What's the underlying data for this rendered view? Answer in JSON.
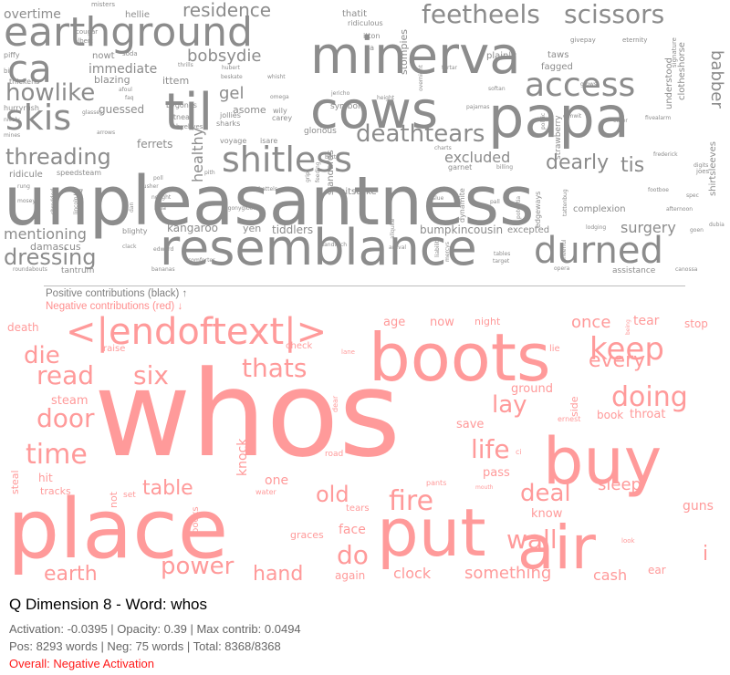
{
  "title": "Q Dimension 8 - Word: whos",
  "stats": {
    "line1": "Activation: -0.0395 | Opacity: 0.39 | Max contrib: 0.0494",
    "line2": "Pos: 8293 words | Neg: 75 words | Total: 8368/8368",
    "line3": "Overall: Negative Activation"
  },
  "legend": {
    "positive": "Positive contributions (black) ↑",
    "negative": "Negative contributions (red) ↓"
  },
  "colors": {
    "positive_words": "#8c8c8c",
    "negative_words": "#ff9a9a",
    "overall_text": "#ff1a1a"
  },
  "positive_words": [
    {
      "t": "unpleasantness",
      "s": 74
    },
    {
      "t": "papa",
      "s": 62
    },
    {
      "t": "minerva",
      "s": 56
    },
    {
      "t": "til",
      "s": 56
    },
    {
      "t": "cows",
      "s": 56
    },
    {
      "t": "resemblance",
      "s": 54
    },
    {
      "t": "earthground",
      "s": 44
    },
    {
      "t": "ca",
      "s": 42
    },
    {
      "t": "durned",
      "s": 40
    },
    {
      "t": "skis",
      "s": 38
    },
    {
      "t": "shitless",
      "s": 38
    },
    {
      "t": "access",
      "s": 36
    },
    {
      "t": "feetheels",
      "s": 28
    },
    {
      "t": "scissors",
      "s": 28
    },
    {
      "t": "howlike",
      "s": 26
    },
    {
      "t": "deathtears",
      "s": 26
    },
    {
      "t": "threading",
      "s": 24
    },
    {
      "t": "dressing",
      "s": 24
    },
    {
      "t": "dearly",
      "s": 22
    },
    {
      "t": "tis",
      "s": 22
    },
    {
      "t": "residence",
      "s": 20
    },
    {
      "t": "bobsydie",
      "s": 18
    },
    {
      "t": "babber",
      "s": 18
    },
    {
      "t": "gel",
      "s": 18
    },
    {
      "t": "mentioning",
      "s": 16
    },
    {
      "t": "excluded",
      "s": 16
    },
    {
      "t": "surgery",
      "s": 16
    },
    {
      "t": "healthy",
      "s": 16
    },
    {
      "t": "overtime",
      "s": 14
    },
    {
      "t": "immediate",
      "s": 14
    },
    {
      "t": "ferrets",
      "s": 12
    },
    {
      "t": "bumpkincousin",
      "s": 12
    },
    {
      "t": "kangaroo",
      "s": 12
    },
    {
      "t": "tiddlers",
      "s": 12
    },
    {
      "t": "guessed",
      "s": 12
    },
    {
      "t": "ittem",
      "s": 11
    },
    {
      "t": "blazing",
      "s": 11
    },
    {
      "t": "asome",
      "s": 11
    },
    {
      "t": "damascus",
      "s": 11
    },
    {
      "t": "yen",
      "s": 11
    },
    {
      "t": "stompies",
      "s": 11
    },
    {
      "t": "standards",
      "s": 10
    },
    {
      "t": "hitstrike",
      "s": 10
    },
    {
      "t": "complexion",
      "s": 10
    },
    {
      "t": "shirtsleeves",
      "s": 10
    },
    {
      "t": "clotheshorse",
      "s": 10
    },
    {
      "t": "understood",
      "s": 10
    },
    {
      "t": "nowt",
      "s": 10
    },
    {
      "t": "ridicule",
      "s": 10
    },
    {
      "t": "assistance",
      "s": 9
    },
    {
      "t": "tantrum",
      "s": 9
    },
    {
      "t": "excepted",
      "s": 10
    },
    {
      "t": "fagged",
      "s": 10
    },
    {
      "t": "taws",
      "s": 10
    },
    {
      "t": "plainly",
      "s": 10
    },
    {
      "t": "thatit",
      "s": 10
    },
    {
      "t": "hellie",
      "s": 10
    },
    {
      "t": "symbol",
      "s": 9
    },
    {
      "t": "glorious",
      "s": 9
    },
    {
      "t": "strawberry",
      "s": 9
    },
    {
      "t": "jollies",
      "s": 8
    },
    {
      "t": "sharks",
      "s": 8
    },
    {
      "t": "atnear",
      "s": 8
    },
    {
      "t": "bygones",
      "s": 8
    },
    {
      "t": "byebyes",
      "s": 7
    },
    {
      "t": "carey",
      "s": 8
    },
    {
      "t": "wily",
      "s": 8
    },
    {
      "t": "dynamite",
      "s": 8
    },
    {
      "t": "edgeways",
      "s": 8
    },
    {
      "t": "garnet",
      "s": 8
    },
    {
      "t": "speedsteam",
      "s": 8
    },
    {
      "t": "blighty",
      "s": 8
    },
    {
      "t": "voyage",
      "s": 8
    },
    {
      "t": "isare",
      "s": 8
    },
    {
      "t": "hurryrush",
      "s": 8
    },
    {
      "t": "thickens",
      "s": 8
    },
    {
      "t": "piffy",
      "s": 8
    },
    {
      "t": "ridiculous",
      "s": 8
    },
    {
      "t": "misters",
      "s": 7
    },
    {
      "t": "cougar",
      "s": 7
    },
    {
      "t": "albert",
      "s": 7
    },
    {
      "t": "biv",
      "s": 7
    },
    {
      "t": "soda",
      "s": 7
    },
    {
      "t": "eternity",
      "s": 7
    },
    {
      "t": "givepay",
      "s": 7
    },
    {
      "t": "signature",
      "s": 7
    },
    {
      "t": "grows",
      "s": 6
    },
    {
      "t": "dimwit",
      "s": 6
    },
    {
      "t": "eater",
      "s": 6
    },
    {
      "t": "fivealarm",
      "s": 6
    },
    {
      "t": "frederick",
      "s": 6
    },
    {
      "t": "digits",
      "s": 6
    },
    {
      "t": "joes",
      "s": 7
    },
    {
      "t": "spec",
      "s": 6
    },
    {
      "t": "footboe",
      "s": 6
    },
    {
      "t": "afternoon",
      "s": 6
    },
    {
      "t": "dubia",
      "s": 6
    },
    {
      "t": "goen",
      "s": 6
    },
    {
      "t": "canossa",
      "s": 6
    },
    {
      "t": "opera",
      "s": 6
    },
    {
      "t": "lodging",
      "s": 6
    },
    {
      "t": "cheerful",
      "s": 6
    },
    {
      "t": "tables",
      "s": 6
    },
    {
      "t": "target",
      "s": 6
    },
    {
      "t": "arrival",
      "s": 6
    },
    {
      "t": "mercys",
      "s": 6
    },
    {
      "t": "allquite",
      "s": 6
    },
    {
      "t": "liability",
      "s": 6
    },
    {
      "t": "grips",
      "s": 6
    },
    {
      "t": "feeding",
      "s": 6
    },
    {
      "t": "sandwich",
      "s": 6
    },
    {
      "t": "chattels",
      "s": 6
    },
    {
      "t": "comforter",
      "s": 6
    },
    {
      "t": "bananas",
      "s": 6
    },
    {
      "t": "roundabouts",
      "s": 6
    },
    {
      "t": "clack",
      "s": 6
    },
    {
      "t": "edward",
      "s": 6
    },
    {
      "t": "hula",
      "s": 6
    },
    {
      "t": "nought",
      "s": 6
    },
    {
      "t": "pusher",
      "s": 6
    },
    {
      "t": "poll",
      "s": 6
    },
    {
      "t": "dan",
      "s": 6
    },
    {
      "t": "shredded",
      "s": 6
    },
    {
      "t": "mosey",
      "s": 6
    },
    {
      "t": "rung",
      "s": 6
    },
    {
      "t": "billing",
      "s": 6
    },
    {
      "t": "charts",
      "s": 6
    },
    {
      "t": "slue",
      "s": 6
    },
    {
      "t": "pall",
      "s": 6
    },
    {
      "t": "batty",
      "s": 6
    },
    {
      "t": "jericho",
      "s": 6
    },
    {
      "t": "height",
      "s": 6
    },
    {
      "t": "pajamas",
      "s": 6
    },
    {
      "t": "softan",
      "s": 6
    },
    {
      "t": "tartar",
      "s": 6
    },
    {
      "t": "overnight",
      "s": 6
    },
    {
      "t": "itton",
      "s": 8
    },
    {
      "t": "pa",
      "s": 8
    },
    {
      "t": "omega",
      "s": 6
    },
    {
      "t": "whisht",
      "s": 6
    },
    {
      "t": "beskate",
      "s": 6
    },
    {
      "t": "hubert",
      "s": 6
    },
    {
      "t": "thrills",
      "s": 6
    },
    {
      "t": "afoul",
      "s": 6
    },
    {
      "t": "faq",
      "s": 6
    },
    {
      "t": "glasses",
      "s": 6
    },
    {
      "t": "arrows",
      "s": 6
    },
    {
      "t": "mines",
      "s": 6
    },
    {
      "t": "nicely",
      "s": 6
    },
    {
      "t": "57",
      "s": 9
    },
    {
      "t": "agonygloom",
      "s": 6
    },
    {
      "t": "pith",
      "s": 6
    },
    {
      "t": "potentia",
      "s": 6
    },
    {
      "t": "tattenbug",
      "s": 6
    },
    {
      "t": "politic",
      "s": 6
    },
    {
      "t": "lincoln",
      "s": 6
    }
  ],
  "negative_words": [
    {
      "t": "whos",
      "s": 130
    },
    {
      "t": "place",
      "s": 90
    },
    {
      "t": "put",
      "s": 72
    },
    {
      "t": "boots",
      "s": 72
    },
    {
      "t": "buy",
      "s": 70
    },
    {
      "t": "air",
      "s": 66
    },
    {
      "t": "<|endoftext|>",
      "s": 40
    },
    {
      "t": "keep",
      "s": 34
    },
    {
      "t": "doing",
      "s": 30
    },
    {
      "t": "fire",
      "s": 30
    },
    {
      "t": "time",
      "s": 30
    },
    {
      "t": "read",
      "s": 28
    },
    {
      "t": "six",
      "s": 28
    },
    {
      "t": "thats",
      "s": 28
    },
    {
      "t": "door",
      "s": 28
    },
    {
      "t": "life",
      "s": 28
    },
    {
      "t": "do",
      "s": 28
    },
    {
      "t": "wall",
      "s": 28
    },
    {
      "t": "die",
      "s": 26
    },
    {
      "t": "lay",
      "s": 26
    },
    {
      "t": "deal",
      "s": 26
    },
    {
      "t": "power",
      "s": 26
    },
    {
      "t": "old",
      "s": 24
    },
    {
      "t": "table",
      "s": 22
    },
    {
      "t": "hand",
      "s": 22
    },
    {
      "t": "earth",
      "s": 22
    },
    {
      "t": "every",
      "s": 22
    },
    {
      "t": "i",
      "s": 22
    },
    {
      "t": "once",
      "s": 18
    },
    {
      "t": "sleep",
      "s": 18
    },
    {
      "t": "something",
      "s": 18
    },
    {
      "t": "face",
      "s": 14
    },
    {
      "t": "clock",
      "s": 16
    },
    {
      "t": "cash",
      "s": 16
    },
    {
      "t": "knock",
      "s": 14
    },
    {
      "t": "guns",
      "s": 14
    },
    {
      "t": "ground",
      "s": 13
    },
    {
      "t": "throat",
      "s": 13
    },
    {
      "t": "steam",
      "s": 13
    },
    {
      "t": "pass",
      "s": 13
    },
    {
      "t": "save",
      "s": 13
    },
    {
      "t": "one",
      "s": 14
    },
    {
      "t": "again",
      "s": 12
    },
    {
      "t": "tear",
      "s": 14
    },
    {
      "t": "now",
      "s": 13
    },
    {
      "t": "age",
      "s": 13
    },
    {
      "t": "night",
      "s": 11
    },
    {
      "t": "stop",
      "s": 12
    },
    {
      "t": "know",
      "s": 13
    },
    {
      "t": "ear",
      "s": 12
    },
    {
      "t": "book",
      "s": 12
    },
    {
      "t": "side",
      "s": 11
    },
    {
      "t": "death",
      "s": 12
    },
    {
      "t": "hit",
      "s": 12
    },
    {
      "t": "tracks",
      "s": 11
    },
    {
      "t": "not",
      "s": 11
    },
    {
      "t": "steal",
      "s": 11
    },
    {
      "t": "graces",
      "s": 11
    },
    {
      "t": "check",
      "s": 10
    },
    {
      "t": "raise",
      "s": 10
    },
    {
      "t": "lie",
      "s": 10
    },
    {
      "t": "ears",
      "s": 10
    },
    {
      "t": "tears",
      "s": 10
    },
    {
      "t": "books",
      "s": 10
    },
    {
      "t": "set",
      "s": 9
    },
    {
      "t": "water",
      "s": 8
    },
    {
      "t": "road",
      "s": 9
    },
    {
      "t": "dear",
      "s": 8
    },
    {
      "t": "pants",
      "s": 8
    },
    {
      "t": "ernest",
      "s": 8
    },
    {
      "t": "ci",
      "s": 8
    },
    {
      "t": "look",
      "s": 7
    },
    {
      "t": "lane",
      "s": 7
    },
    {
      "t": "mouth",
      "s": 6
    },
    {
      "t": "being",
      "s": 6
    }
  ]
}
